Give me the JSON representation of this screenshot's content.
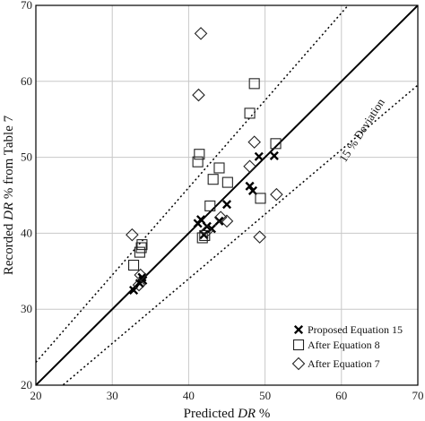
{
  "chart_data": {
    "type": "scatter",
    "xlabel_prefix": "Predicted ",
    "xlabel_italic": "DR",
    "xlabel_suffix": " %",
    "ylabel_prefix": "Recorded ",
    "ylabel_italic": "DR",
    "ylabel_suffix": " % from Table 7",
    "xlim": [
      20,
      70
    ],
    "ylim": [
      20,
      70
    ],
    "xticks": [
      20,
      30,
      40,
      50,
      60,
      70
    ],
    "yticks": [
      20,
      30,
      40,
      50,
      60,
      70
    ],
    "grid": true,
    "deviation_label": "15 % Deviation",
    "legend_position": "bottom-right",
    "series": [
      {
        "name": "Proposed Equation 15",
        "marker": "x",
        "points": [
          [
            32.8,
            32.5
          ],
          [
            33.6,
            33.4
          ],
          [
            33.9,
            34.2
          ],
          [
            34.0,
            33.8
          ],
          [
            41.2,
            41.3
          ],
          [
            41.6,
            41.8
          ],
          [
            42.0,
            39.8
          ],
          [
            42.4,
            40.9
          ],
          [
            43.0,
            40.6
          ],
          [
            44.0,
            41.6
          ],
          [
            45.0,
            43.8
          ],
          [
            48.0,
            46.2
          ],
          [
            48.4,
            45.6
          ],
          [
            49.2,
            50.1
          ],
          [
            51.2,
            50.2
          ]
        ]
      },
      {
        "name": "After Equation 8",
        "marker": "square",
        "points": [
          [
            32.8,
            35.8
          ],
          [
            33.6,
            37.5
          ],
          [
            33.8,
            38.1
          ],
          [
            33.9,
            38.5
          ],
          [
            41.2,
            49.4
          ],
          [
            41.4,
            50.4
          ],
          [
            41.8,
            39.4
          ],
          [
            42.1,
            39.7
          ],
          [
            42.8,
            43.6
          ],
          [
            43.2,
            47.1
          ],
          [
            44.0,
            48.6
          ],
          [
            45.1,
            46.7
          ],
          [
            48.0,
            55.8
          ],
          [
            48.6,
            59.7
          ],
          [
            49.4,
            44.6
          ],
          [
            51.4,
            51.8
          ]
        ]
      },
      {
        "name": "After Equation 7",
        "marker": "diamond",
        "points": [
          [
            32.6,
            39.8
          ],
          [
            33.5,
            33.2
          ],
          [
            33.7,
            34.5
          ],
          [
            41.3,
            58.2
          ],
          [
            41.6,
            66.3
          ],
          [
            42.4,
            40.3
          ],
          [
            44.2,
            42.1
          ],
          [
            45.0,
            41.6
          ],
          [
            48.0,
            48.8
          ],
          [
            48.6,
            52.0
          ],
          [
            49.3,
            39.5
          ],
          [
            51.5,
            45.1
          ]
        ]
      }
    ],
    "lines": [
      {
        "name": "equality",
        "style": "solid",
        "slope": 1.0
      },
      {
        "name": "upper-15",
        "style": "dotted",
        "slope": 1.15
      },
      {
        "name": "lower-15",
        "style": "dotted",
        "slope": 0.85
      }
    ]
  }
}
